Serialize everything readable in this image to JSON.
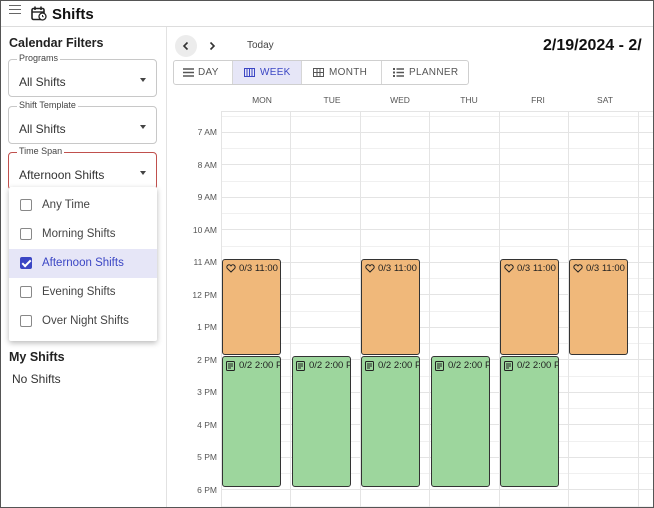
{
  "app": {
    "title": "Shifts",
    "menu_icon": "hamburger-menu-icon",
    "calendar_icon": "calendar-clock-icon"
  },
  "sidebar": {
    "filters_title": "Calendar Filters",
    "programs": {
      "label": "Programs",
      "value": "All Shifts"
    },
    "shift_template": {
      "label": "Shift Template",
      "value": "All Shifts"
    },
    "time_span": {
      "label": "Time Span",
      "value": "Afternoon Shifts",
      "options": [
        {
          "label": "Any Time",
          "checked": false
        },
        {
          "label": "Morning Shifts",
          "checked": false
        },
        {
          "label": "Afternoon Shifts",
          "checked": true
        },
        {
          "label": "Evening Shifts",
          "checked": false
        },
        {
          "label": "Over Night Shifts",
          "checked": false
        }
      ]
    },
    "my_shifts_title": "My Shifts",
    "no_shifts": "No Shifts"
  },
  "toolbar": {
    "today": "Today",
    "date_range": "2/19/2024 - 2/",
    "views": [
      {
        "label": "DAY",
        "icon": "list-icon",
        "active": false
      },
      {
        "label": "WEEK",
        "icon": "week-grid-icon",
        "active": true
      },
      {
        "label": "MONTH",
        "icon": "month-grid-icon",
        "active": false
      },
      {
        "label": "PLANNER",
        "icon": "planner-list-icon",
        "active": false
      }
    ]
  },
  "calendar": {
    "days": [
      "MON",
      "TUE",
      "WED",
      "THU",
      "FRI",
      "SAT"
    ],
    "times": [
      "7 AM",
      "8 AM",
      "9 AM",
      "10 AM",
      "11 AM",
      "12 PM",
      "1 PM",
      "2 PM",
      "3 PM",
      "4 PM",
      "5 PM",
      "6 PM"
    ],
    "afternoon_event_label": "0/3 11:00",
    "shift_event_label": "0/2 2:00 P",
    "colors": {
      "afternoon": "#f0b87a",
      "shift": "#9dd69d",
      "accent": "#3b46c4"
    }
  }
}
